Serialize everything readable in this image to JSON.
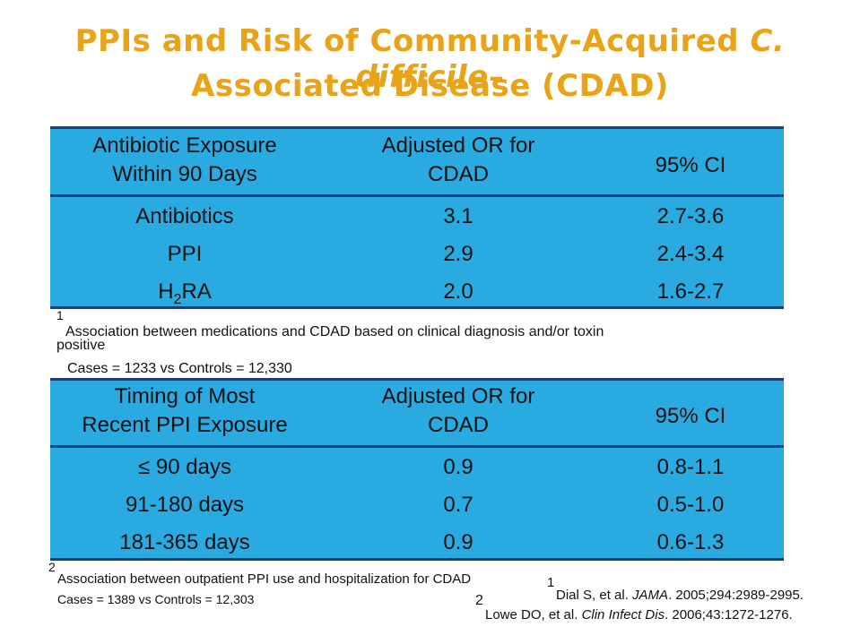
{
  "title": {
    "line1_prefix": "PPIs and Risk of Community-Acquired ",
    "line1_italic": "C. difficile",
    "line1_suffix": "–",
    "line2": "Associated Disease (CDAD)"
  },
  "table1": {
    "headers": [
      "Antibiotic Exposure\nWithin 90 Days",
      "Adjusted OR for\nCDAD",
      "95% CI"
    ],
    "rows": [
      [
        "Antibiotics",
        "3.1",
        "2.7-3.6"
      ],
      [
        "PPI",
        "2.9",
        "2.4-3.4"
      ],
      [
        "H",
        "2.0",
        "1.6-2.7"
      ]
    ],
    "h2ra_sub": "2",
    "h2ra_suffix": "RA"
  },
  "footnote1": {
    "marker": "1",
    "line1": "Association between medications and CDAD based on clinical diagnosis and/or toxin",
    "line2": "positive",
    "line3": "Cases = 1233 vs Controls = 12,330"
  },
  "table2": {
    "headers": [
      "Timing of Most\nRecent PPI Exposure",
      "Adjusted OR for\nCDAD",
      "95% CI"
    ],
    "rows": [
      [
        "≤ 90 days",
        "0.9",
        "0.8-1.1"
      ],
      [
        "91-180 days",
        "0.7",
        "0.5-1.0"
      ],
      [
        "181-365 days",
        "0.9",
        "0.6-1.3"
      ]
    ]
  },
  "footnote2": {
    "marker": "2",
    "line1": "Association between outpatient PPI use and hospitalization for CDAD",
    "line2": "Cases = 1389 vs Controls = 12,303"
  },
  "references": [
    {
      "marker": "1",
      "authors": "Dial S, et al. ",
      "journal": "JAMA",
      "rest": ". 2005;294:2989-2995."
    },
    {
      "marker": "2",
      "authors": "Lowe DO, et al. ",
      "journal": "Clin Infect Dis",
      "rest": ". 2006;43:1272-1276."
    }
  ]
}
